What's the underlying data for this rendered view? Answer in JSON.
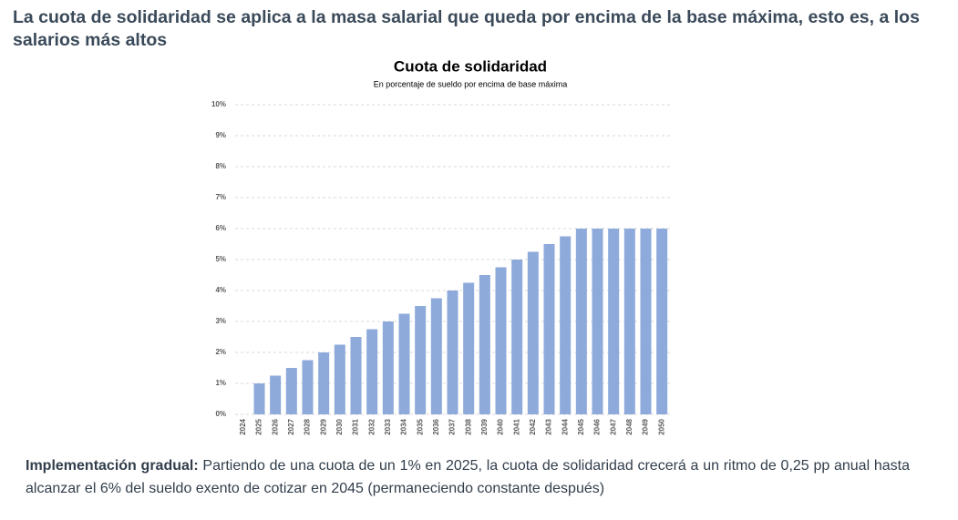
{
  "header": {
    "title": "La cuota de solidaridad se aplica a la masa salarial que queda por encima de la base máxima, esto es, a los salarios más altos"
  },
  "chart_data": {
    "type": "bar",
    "title": "Cuota de solidaridad",
    "subtitle": "En porcentaje de sueldo por encima de base máxima",
    "categories": [
      "2024",
      "2025",
      "2026",
      "2027",
      "2028",
      "2029",
      "2030",
      "2031",
      "2032",
      "2033",
      "2034",
      "2035",
      "2036",
      "2037",
      "2038",
      "2039",
      "2040",
      "2041",
      "2042",
      "2043",
      "2044",
      "2045",
      "2046",
      "2047",
      "2048",
      "2049",
      "2050"
    ],
    "values": [
      0,
      1,
      1.25,
      1.5,
      1.75,
      2,
      2.25,
      2.5,
      2.75,
      3,
      3.25,
      3.5,
      3.75,
      4,
      4.25,
      4.5,
      4.75,
      5,
      5.25,
      5.5,
      5.75,
      6,
      6,
      6,
      6,
      6,
      6
    ],
    "color": "#8eaadb",
    "ylim": [
      0,
      10
    ],
    "yticks": [
      {
        "value": 0,
        "label": "0%"
      },
      {
        "value": 1,
        "label": "1%"
      },
      {
        "value": 2,
        "label": "2%"
      },
      {
        "value": 3,
        "label": "3%"
      },
      {
        "value": 4,
        "label": "4%"
      },
      {
        "value": 5,
        "label": "5%"
      },
      {
        "value": 6,
        "label": "6%"
      },
      {
        "value": 7,
        "label": "7%"
      },
      {
        "value": 8,
        "label": "8%"
      },
      {
        "value": 9,
        "label": "9%"
      },
      {
        "value": 10,
        "label": "10%"
      }
    ],
    "grid": true
  },
  "footer": {
    "lead": "Implementación gradual:",
    "text": "Partiendo de una cuota de un 1% en 2025, la cuota de solidaridad crecerá a un ritmo de 0,25 pp anual hasta alcanzar el 6% del sueldo exento de cotizar en 2045 (permaneciendo constante después)"
  }
}
